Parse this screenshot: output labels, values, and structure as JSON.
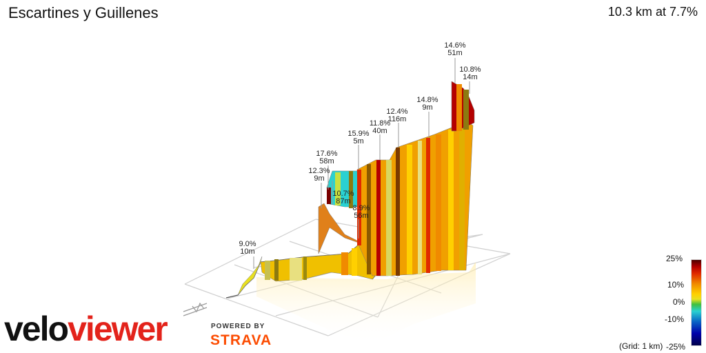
{
  "header": {
    "title": "Escartines y Guillenes",
    "summary": "10.3 km at 7.7%"
  },
  "legend": {
    "ticks": [
      "25%",
      "10%",
      "0%",
      "-10%",
      "-25%"
    ],
    "grid_note": "(Grid: 1 km)"
  },
  "branding": {
    "logo_part1": "velo",
    "logo_part2": "viewer",
    "powered_by": "POWERED BY",
    "strava": "STRAVA"
  },
  "chart_data": {
    "type": "area",
    "title": "Escartines y Guillenes",
    "subtitle": "10.3 km at 7.7%",
    "colors": {
      "steep": "#b40000",
      "hard": "#f08a00",
      "moderate": "#ffd000",
      "easy": "#d8d860",
      "flat": "#3fbf3f",
      "descent": "#2ad1d1"
    },
    "annotations": [
      {
        "gradient": "9.0%",
        "length": "10m"
      },
      {
        "gradient": "12.3%",
        "length": "9m"
      },
      {
        "gradient": "17.6%",
        "length": "58m"
      },
      {
        "gradient": "10.7%",
        "length": "87m"
      },
      {
        "gradient": "8.9%",
        "length": "56m"
      },
      {
        "gradient": "15.9%",
        "length": "5m"
      },
      {
        "gradient": "11.8%",
        "length": "40m"
      },
      {
        "gradient": "12.4%",
        "length": "116m"
      },
      {
        "gradient": "14.8%",
        "length": "9m"
      },
      {
        "gradient": "14.6%",
        "length": "51m"
      },
      {
        "gradient": "10.8%",
        "length": "14m"
      }
    ]
  }
}
